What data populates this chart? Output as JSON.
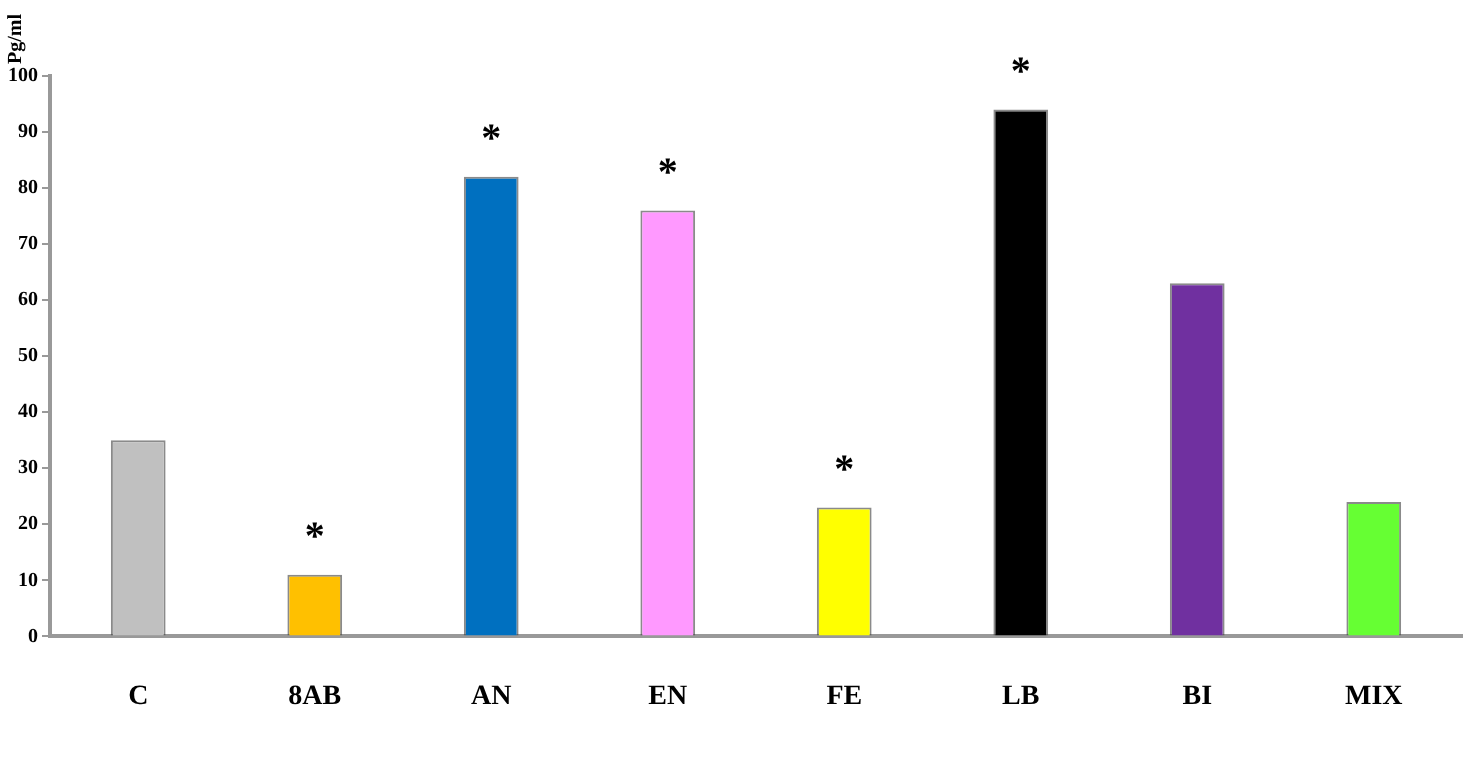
{
  "chart_data": {
    "type": "bar",
    "ylabel": "Pg/ml",
    "categories": [
      "C",
      "8AB",
      "AN",
      "EN",
      "FE",
      "LB",
      "BI",
      "MIX"
    ],
    "values": [
      35,
      11,
      82,
      76,
      23,
      94,
      63,
      24
    ],
    "colors": [
      "#c0c0c0",
      "#ffc000",
      "#0070c0",
      "#ff99ff",
      "#ffff00",
      "#000000",
      "#7030a0",
      "#66ff33"
    ],
    "ylim": [
      0,
      100
    ],
    "yticks": [
      0,
      10,
      20,
      30,
      40,
      50,
      60,
      70,
      80,
      90,
      100
    ],
    "grid": false,
    "legend": false,
    "annotations": [
      {
        "text": "*",
        "x": "8AB",
        "y": 11
      },
      {
        "text": "*",
        "x": "AN",
        "y": 82
      },
      {
        "text": "*",
        "x": "EN",
        "y": 76
      },
      {
        "text": "*",
        "x": "FE",
        "y": 23
      },
      {
        "text": "*",
        "x": "LB",
        "y": 94
      }
    ]
  }
}
